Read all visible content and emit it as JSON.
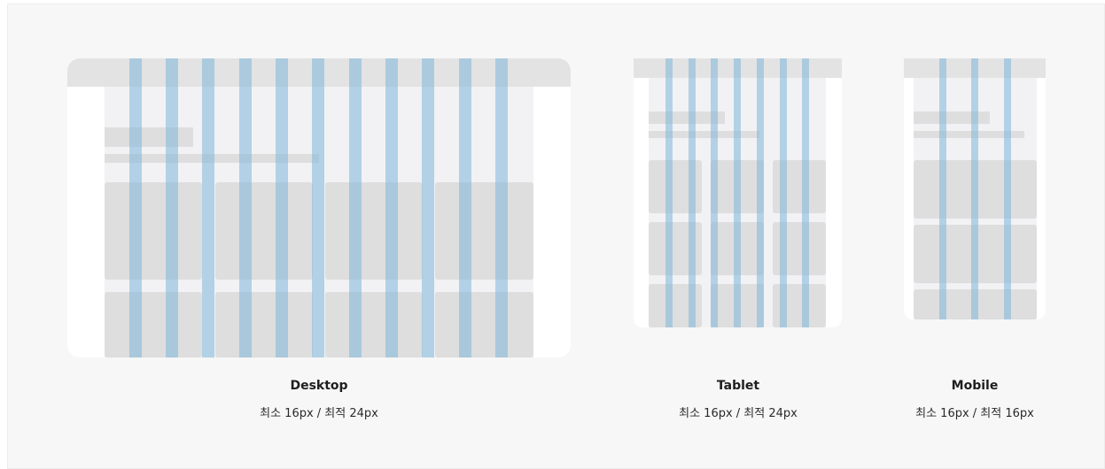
{
  "devices": [
    {
      "name": "Desktop",
      "margin": "최소 16px / 최적 24px",
      "columns": 12
    },
    {
      "name": "Tablet",
      "margin": "최소 16px / 최적 24px",
      "columns": 8
    },
    {
      "name": "Mobile",
      "margin": "최소 16px / 최적 16px",
      "columns": 4
    }
  ],
  "colors": {
    "column_overlay": "#7eb7db",
    "placeholder_block": "#dedede",
    "top_bar": "#e3e3e3",
    "content_area": "#f2f2f4",
    "background": "#f7f7f7"
  }
}
